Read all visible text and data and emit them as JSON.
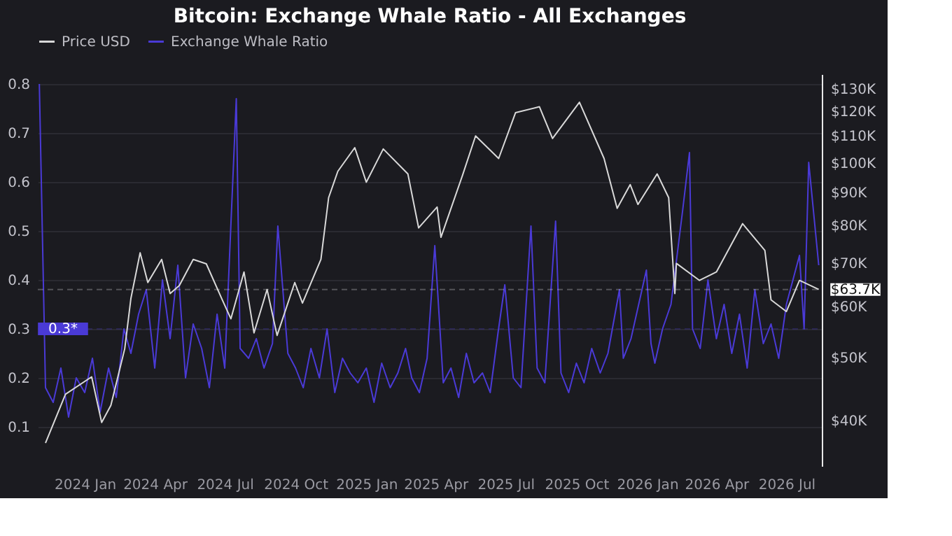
{
  "chart_data": {
    "type": "line",
    "title": "Bitcoin: Exchange Whale Ratio - All Exchanges",
    "xlim": [
      "2023-11-01",
      "2026-08-16"
    ],
    "xticks": [
      {
        "value": "2024-01-01",
        "label": "2024 Jan"
      },
      {
        "value": "2024-04-01",
        "label": "2024 Apr"
      },
      {
        "value": "2024-07-01",
        "label": "2024 Jul"
      },
      {
        "value": "2024-10-01",
        "label": "2024 Oct"
      },
      {
        "value": "2025-01-01",
        "label": "2025 Jan"
      },
      {
        "value": "2025-04-01",
        "label": "2025 Apr"
      },
      {
        "value": "2025-07-01",
        "label": "2025 Jul"
      },
      {
        "value": "2025-10-01",
        "label": "2025 Oct"
      },
      {
        "value": "2026-01-01",
        "label": "2026 Jan"
      },
      {
        "value": "2026-04-01",
        "label": "2026 Apr"
      },
      {
        "value": "2026-07-01",
        "label": "2026 Jul"
      }
    ],
    "ylim": [
      0.02,
      0.82
    ],
    "yticks": [
      0.1,
      0.2,
      0.3,
      0.4,
      0.5,
      0.6,
      0.7,
      0.8
    ],
    "y2lim": [
      34000,
      137000
    ],
    "y2ticks": [
      {
        "value": 40000,
        "label": "$40K"
      },
      {
        "value": 50000,
        "label": "$50K"
      },
      {
        "value": 60000,
        "label": "$60K"
      },
      {
        "value": 70000,
        "label": "$70K"
      },
      {
        "value": 80000,
        "label": "$80K"
      },
      {
        "value": 90000,
        "label": "$90K"
      },
      {
        "value": 100000,
        "label": "$100K"
      },
      {
        "value": 110000,
        "label": "$110K"
      },
      {
        "value": 120000,
        "label": "$120K"
      },
      {
        "value": 130000,
        "label": "$130K"
      }
    ],
    "log": "y2",
    "grid": "y",
    "legend": "top",
    "series": [
      {
        "name": "Price USD",
        "color": "#d9d9d9",
        "axis": "y2",
        "x": [
          "2023-11-11",
          "2023-12-07",
          "2024-01-10",
          "2024-01-23",
          "2024-02-04",
          "2024-02-22",
          "2024-03-01",
          "2024-03-13",
          "2024-03-23",
          "2024-04-10",
          "2024-04-21",
          "2024-05-03",
          "2024-05-21",
          "2024-06-07",
          "2024-06-27",
          "2024-07-09",
          "2024-07-26",
          "2024-08-08",
          "2024-08-25",
          "2024-09-07",
          "2024-09-30",
          "2024-10-10",
          "2024-11-03",
          "2024-11-13",
          "2024-11-25",
          "2024-12-17",
          "2025-01-01",
          "2025-01-23",
          "2025-02-24",
          "2025-03-10",
          "2025-04-03",
          "2025-04-08",
          "2025-05-06",
          "2025-05-23",
          "2025-06-22",
          "2025-07-14",
          "2025-08-14",
          "2025-08-31",
          "2025-10-05",
          "2025-11-06",
          "2025-11-23",
          "2025-12-10",
          "2025-12-20",
          "2026-01-14",
          "2026-01-29",
          "2026-02-06",
          "2026-02-08",
          "2026-03-10",
          "2026-04-01",
          "2026-05-05",
          "2026-06-03",
          "2026-06-11",
          "2026-07-01",
          "2026-07-18",
          "2026-08-12"
        ],
        "values": [
          36900,
          43900,
          46700,
          39700,
          42200,
          51600,
          61700,
          72600,
          65300,
          70900,
          62800,
          64600,
          70900,
          69800,
          61700,
          57400,
          67800,
          54600,
          63700,
          54100,
          65300,
          60700,
          70900,
          88300,
          97000,
          105500,
          93300,
          105000,
          96100,
          79300,
          85400,
          76700,
          95600,
          110000,
          101500,
          119500,
          122000,
          109000,
          124000,
          101500,
          85000,
          92500,
          86200,
          96100,
          88300,
          62800,
          69900,
          65800,
          67800,
          80500,
          73200,
          61400,
          58900,
          65800,
          63700
        ]
      },
      {
        "name": "Exchange Whale Ratio",
        "color": "#4a3ad6",
        "x": [
          "2023-11-03",
          "2023-11-11",
          "2023-11-21",
          "2023-12-01",
          "2023-12-11",
          "2023-12-21",
          "2024-01-01",
          "2024-01-11",
          "2024-01-21",
          "2024-02-01",
          "2024-02-11",
          "2024-02-21",
          "2024-03-01",
          "2024-03-11",
          "2024-03-21",
          "2024-04-01",
          "2024-04-11",
          "2024-04-21",
          "2024-05-01",
          "2024-05-11",
          "2024-05-21",
          "2024-06-01",
          "2024-06-11",
          "2024-06-21",
          "2024-07-01",
          "2024-07-16",
          "2024-07-21",
          "2024-08-01",
          "2024-08-11",
          "2024-08-21",
          "2024-09-01",
          "2024-09-08",
          "2024-09-21",
          "2024-10-01",
          "2024-10-11",
          "2024-10-21",
          "2024-11-01",
          "2024-11-11",
          "2024-11-21",
          "2024-12-01",
          "2024-12-11",
          "2024-12-21",
          "2025-01-01",
          "2025-01-11",
          "2025-01-21",
          "2025-02-01",
          "2025-02-11",
          "2025-02-21",
          "2025-03-01",
          "2025-03-11",
          "2025-03-21",
          "2025-03-31",
          "2025-04-11",
          "2025-04-21",
          "2025-05-01",
          "2025-05-11",
          "2025-05-21",
          "2025-06-01",
          "2025-06-11",
          "2025-06-21",
          "2025-06-30",
          "2025-07-11",
          "2025-07-21",
          "2025-08-03",
          "2025-08-11",
          "2025-08-21",
          "2025-09-04",
          "2025-09-11",
          "2025-09-21",
          "2025-10-01",
          "2025-10-11",
          "2025-10-21",
          "2025-11-01",
          "2025-11-11",
          "2025-11-26",
          "2025-12-01",
          "2025-12-11",
          "2025-12-31",
          "2026-01-06",
          "2026-01-11",
          "2026-01-21",
          "2026-02-01",
          "2026-02-16",
          "2026-02-25",
          "2026-03-01",
          "2026-03-11",
          "2026-03-21",
          "2026-04-01",
          "2026-04-11",
          "2026-04-21",
          "2026-05-01",
          "2026-05-11",
          "2026-05-21",
          "2026-06-01",
          "2026-06-11",
          "2026-06-21",
          "2026-07-01",
          "2026-07-18",
          "2026-07-24",
          "2026-07-30",
          "2026-08-12"
        ],
        "values": [
          0.8,
          0.18,
          0.15,
          0.22,
          0.12,
          0.2,
          0.17,
          0.24,
          0.13,
          0.22,
          0.16,
          0.3,
          0.25,
          0.33,
          0.38,
          0.22,
          0.4,
          0.28,
          0.43,
          0.2,
          0.31,
          0.26,
          0.18,
          0.33,
          0.22,
          0.77,
          0.26,
          0.24,
          0.28,
          0.22,
          0.27,
          0.51,
          0.25,
          0.22,
          0.18,
          0.26,
          0.2,
          0.3,
          0.17,
          0.24,
          0.21,
          0.19,
          0.22,
          0.15,
          0.23,
          0.18,
          0.21,
          0.26,
          0.2,
          0.17,
          0.24,
          0.47,
          0.19,
          0.22,
          0.16,
          0.25,
          0.19,
          0.21,
          0.17,
          0.29,
          0.39,
          0.2,
          0.18,
          0.51,
          0.22,
          0.19,
          0.52,
          0.21,
          0.17,
          0.23,
          0.19,
          0.26,
          0.21,
          0.25,
          0.38,
          0.24,
          0.28,
          0.42,
          0.27,
          0.23,
          0.3,
          0.35,
          0.54,
          0.66,
          0.3,
          0.26,
          0.4,
          0.28,
          0.35,
          0.25,
          0.33,
          0.22,
          0.38,
          0.27,
          0.31,
          0.24,
          0.35,
          0.45,
          0.3,
          0.64,
          0.43
        ]
      }
    ],
    "ref_lines": [
      {
        "axis": "y",
        "value": 0.3,
        "label": "0.3*",
        "color": "#4a3ad6"
      },
      {
        "axis": "y2",
        "value": 63700,
        "label": "$63.7K",
        "color": "#ffffff"
      }
    ]
  }
}
